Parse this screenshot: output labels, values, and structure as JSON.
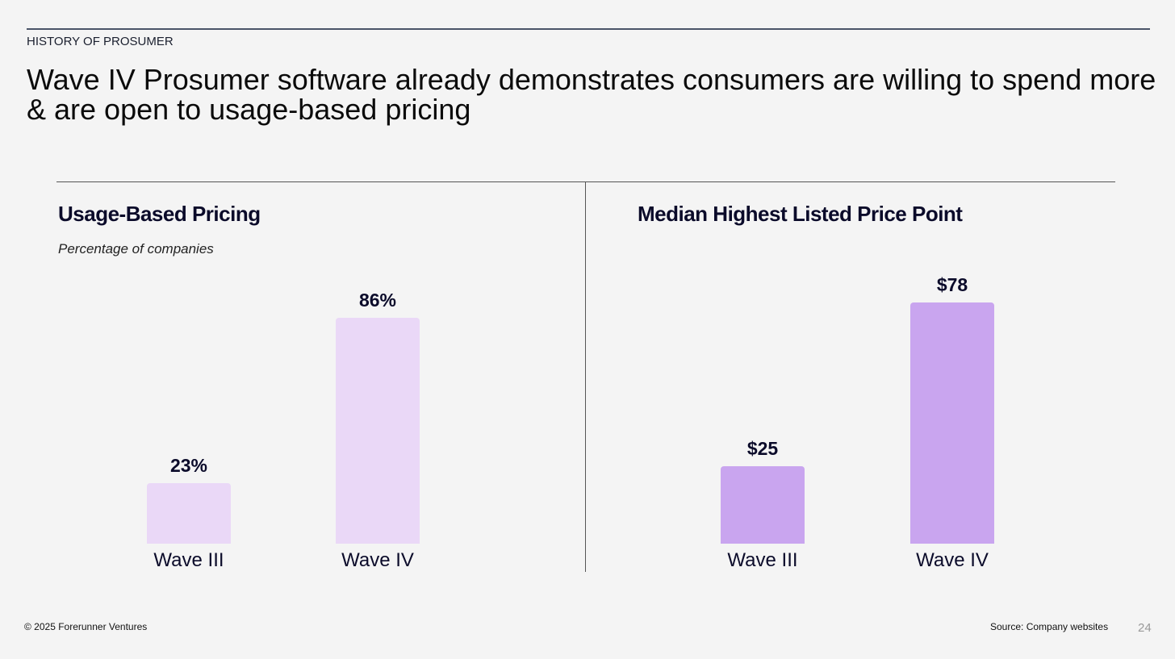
{
  "header": {
    "kicker": "HISTORY OF PROSUMER",
    "title": "Wave IV Prosumer software already demonstrates consumers are willing to spend more & are open to usage-based pricing"
  },
  "chart_data": [
    {
      "type": "bar",
      "title": "Usage-Based Pricing",
      "subtitle": "Percentage of companies",
      "categories": [
        "Wave III",
        "Wave IV"
      ],
      "values": [
        23,
        86
      ],
      "value_labels": [
        "23%",
        "86%"
      ],
      "ylim": [
        0,
        100
      ],
      "color": "#ead8f7",
      "grid": false
    },
    {
      "type": "bar",
      "title": "Median Highest Listed Price Point",
      "categories": [
        "Wave III",
        "Wave IV"
      ],
      "values": [
        25,
        78
      ],
      "value_labels": [
        "$25",
        "$78"
      ],
      "ylim": [
        0,
        90
      ],
      "color": "#c9a5ef",
      "grid": false
    }
  ],
  "footer": {
    "copyright": "© 2025 Forerunner Ventures",
    "source": "Source: Company websites",
    "page": "24"
  }
}
